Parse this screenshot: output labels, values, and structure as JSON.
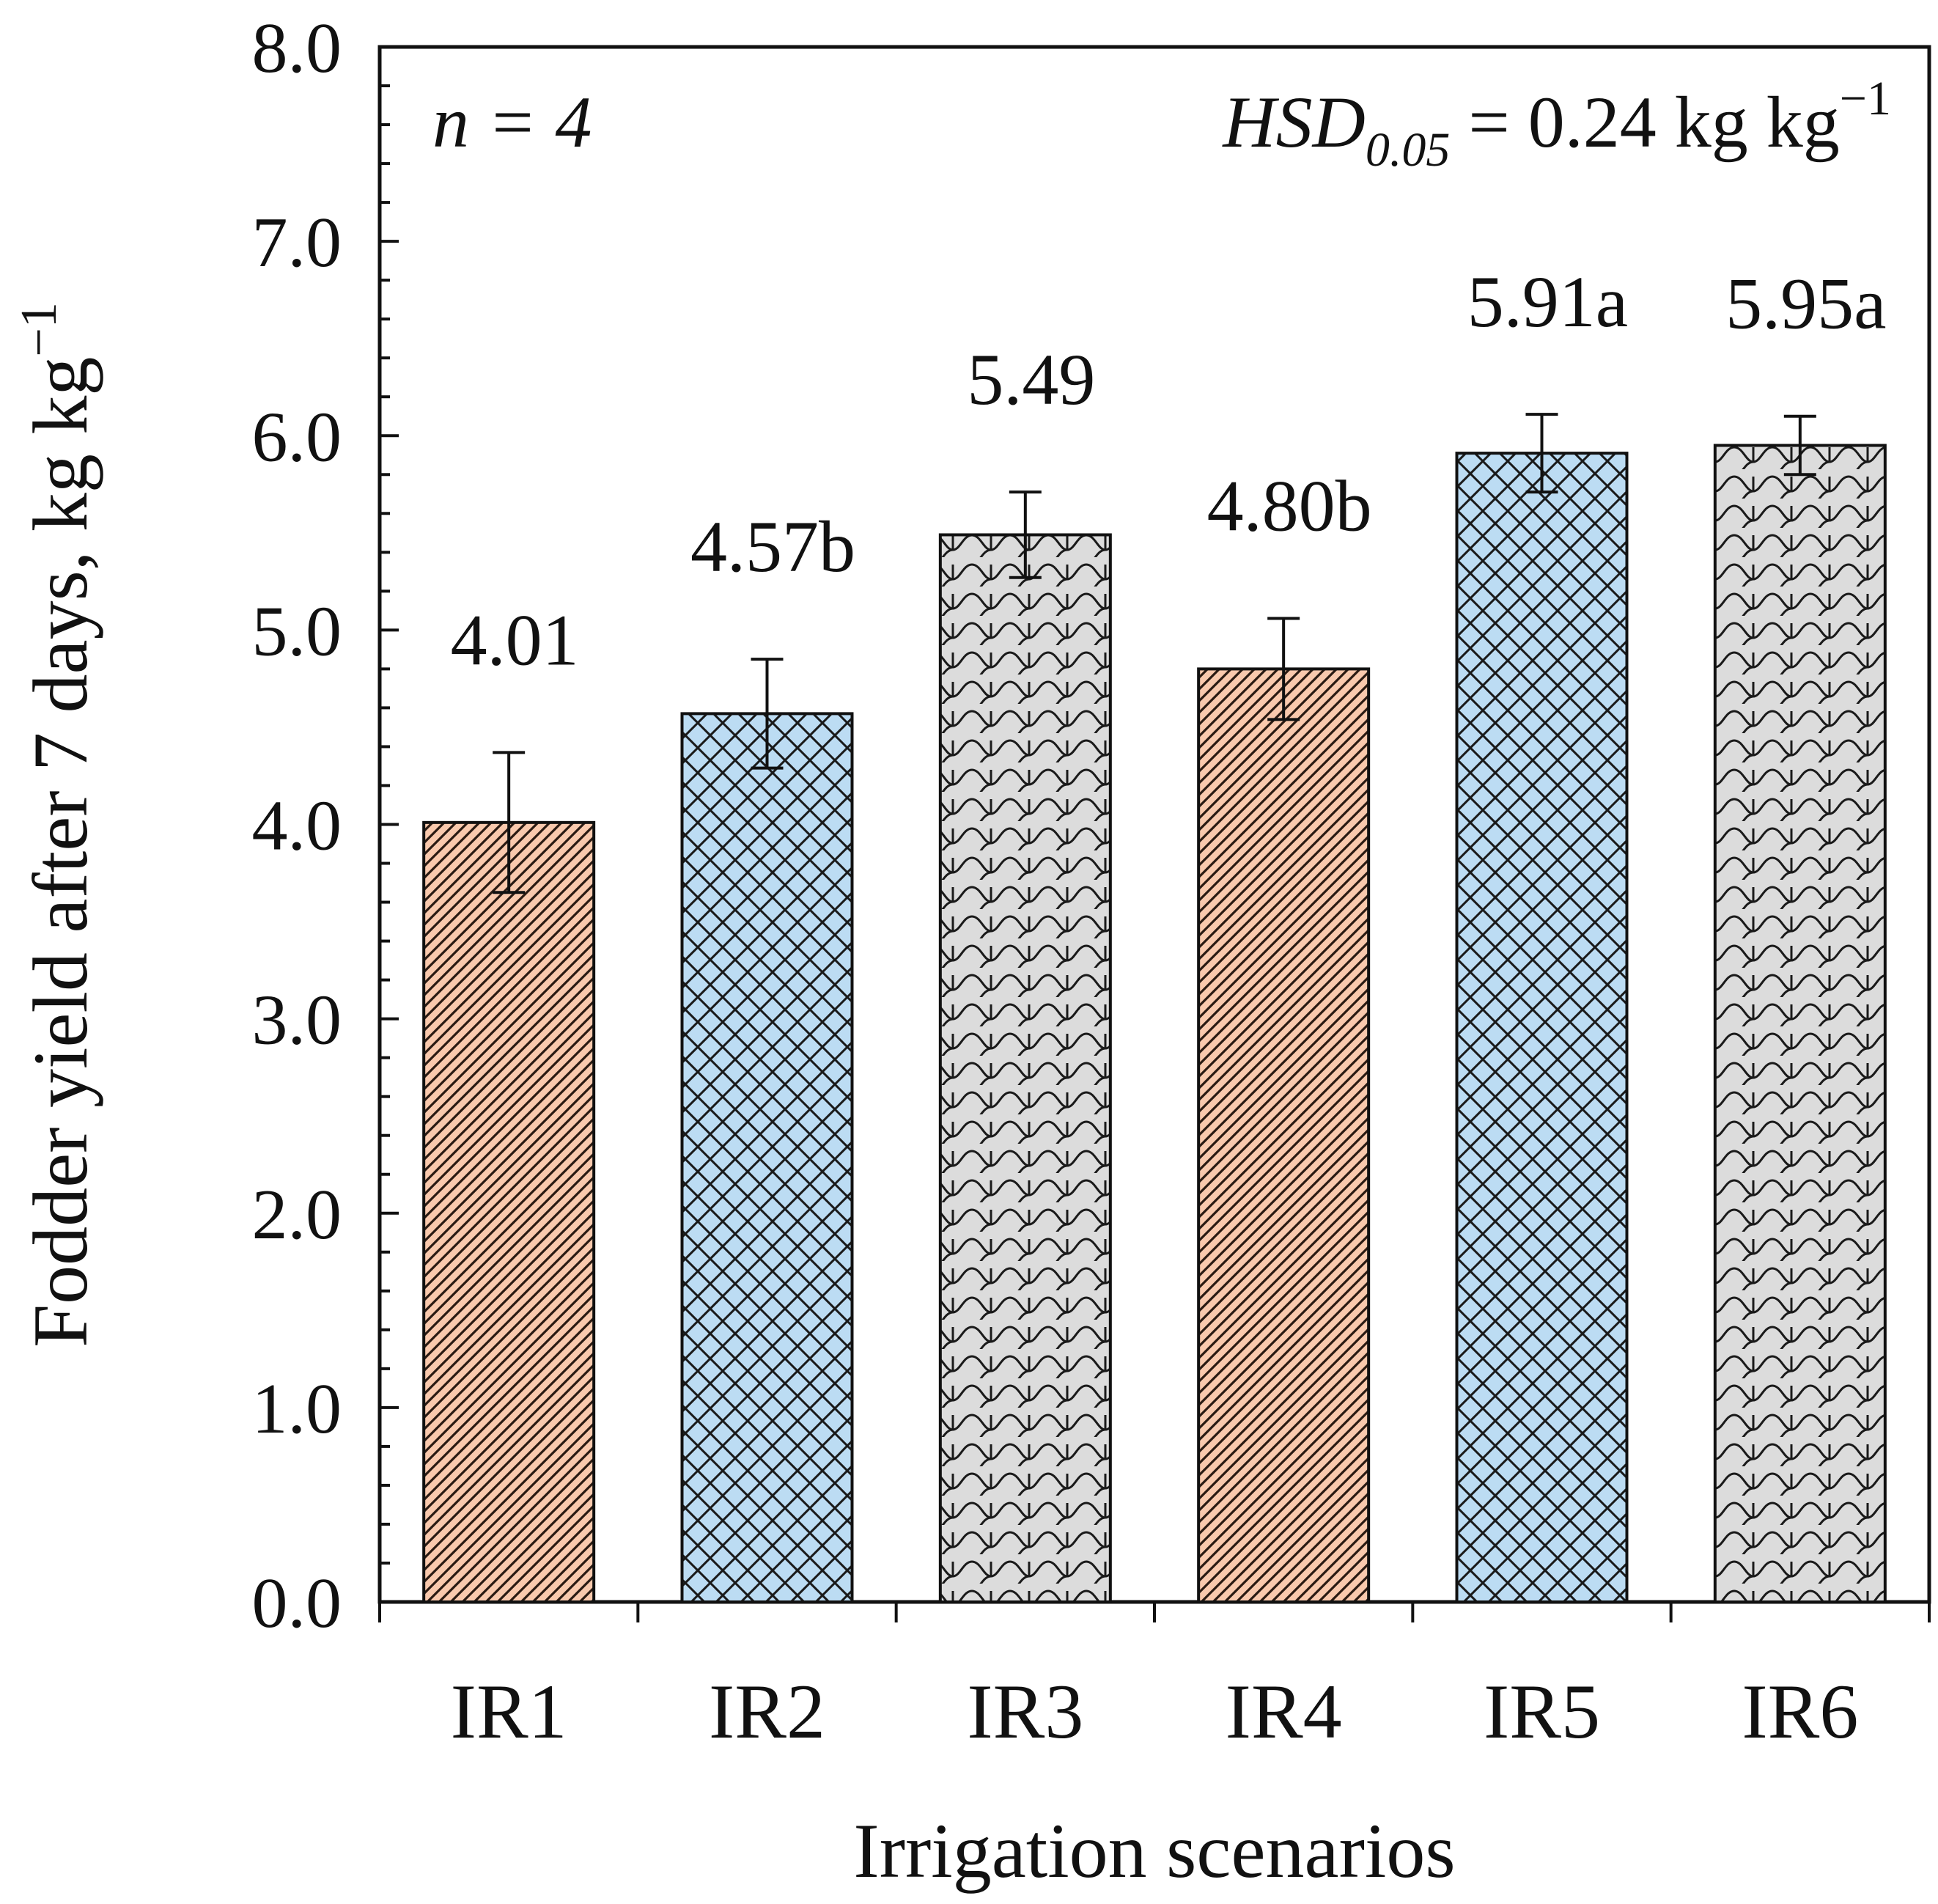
{
  "chart_data": {
    "type": "bar",
    "title": "",
    "xlabel": "Irrigation scenarios",
    "ylabel": {
      "text": "Fodder yield after 7 days, kg kg",
      "superscript": "−1"
    },
    "ylim": [
      0,
      8
    ],
    "yticks": [
      "0.0",
      "1.0",
      "2.0",
      "3.0",
      "4.0",
      "5.0",
      "6.0",
      "7.0",
      "8.0"
    ],
    "ytick_values": [
      0,
      1,
      2,
      3,
      4,
      5,
      6,
      7,
      8
    ],
    "minor_tick_step": 0.2,
    "categories": [
      "IR1",
      "IR2",
      "IR3",
      "IR4",
      "IR5",
      "IR6"
    ],
    "values": [
      4.01,
      4.57,
      5.49,
      4.8,
      5.91,
      5.95
    ],
    "errors": [
      0.36,
      0.28,
      0.22,
      0.26,
      0.2,
      0.15
    ],
    "value_labels": [
      "4.01",
      "4.57b",
      "5.49",
      "4.80b",
      "5.91a",
      "5.95a"
    ],
    "fill_colors": [
      "#f9c9ad",
      "#bcdcf3",
      "#dcdcdc",
      "#f9c9ad",
      "#bcdcf3",
      "#dcdcdc"
    ],
    "patterns": [
      "diagonal",
      "crosshatch",
      "scale",
      "diagonal",
      "crosshatch",
      "scale"
    ],
    "annotations": {
      "n_label": "n = 4",
      "hsd_prefix": "HSD",
      "hsd_subscript": "0.05",
      "hsd_value": " = 0.24 kg kg",
      "hsd_superscript": "−1"
    }
  }
}
